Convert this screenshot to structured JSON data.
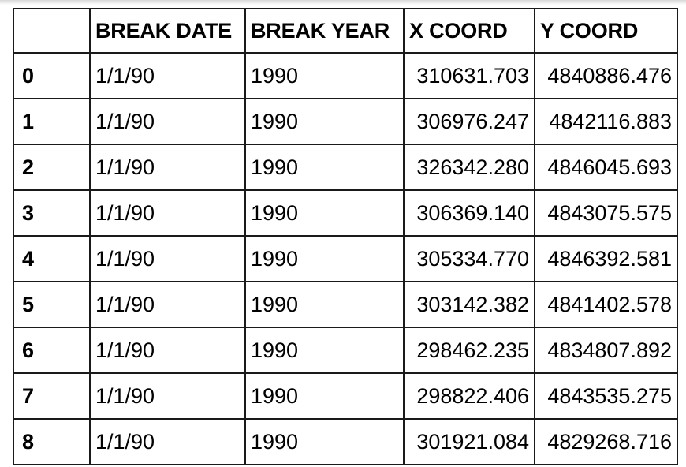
{
  "table": {
    "columns": [
      "",
      "BREAK DATE",
      "BREAK YEAR",
      "X COORD",
      "Y COORD"
    ],
    "rows": [
      {
        "index": "0",
        "break_date": "1/1/90",
        "break_year": "1990",
        "x_coord": "310631.703",
        "y_coord": "4840886.476"
      },
      {
        "index": "1",
        "break_date": "1/1/90",
        "break_year": "1990",
        "x_coord": "306976.247",
        "y_coord": "4842116.883"
      },
      {
        "index": "2",
        "break_date": "1/1/90",
        "break_year": "1990",
        "x_coord": "326342.280",
        "y_coord": "4846045.693"
      },
      {
        "index": "3",
        "break_date": "1/1/90",
        "break_year": "1990",
        "x_coord": "306369.140",
        "y_coord": "4843075.575"
      },
      {
        "index": "4",
        "break_date": "1/1/90",
        "break_year": "1990",
        "x_coord": "305334.770",
        "y_coord": "4846392.581"
      },
      {
        "index": "5",
        "break_date": "1/1/90",
        "break_year": "1990",
        "x_coord": "303142.382",
        "y_coord": "4841402.578"
      },
      {
        "index": "6",
        "break_date": "1/1/90",
        "break_year": "1990",
        "x_coord": "298462.235",
        "y_coord": "4834807.892"
      },
      {
        "index": "7",
        "break_date": "1/1/90",
        "break_year": "1990",
        "x_coord": "298822.406",
        "y_coord": "4843535.275"
      },
      {
        "index": "8",
        "break_date": "1/1/90",
        "break_year": "1990",
        "x_coord": "301921.084",
        "y_coord": "4829268.716"
      }
    ]
  }
}
